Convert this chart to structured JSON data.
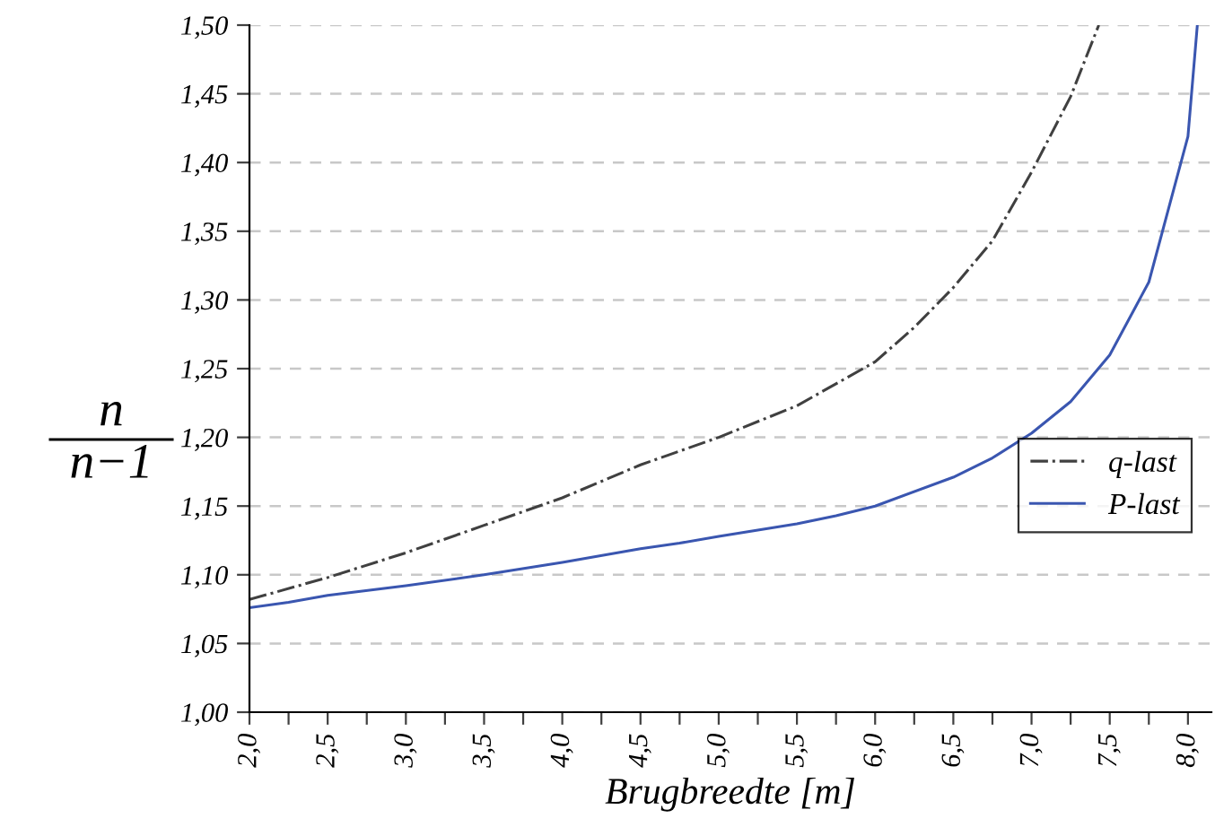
{
  "chart_data": {
    "type": "line",
    "xlabel": "Brugbreedte [m]",
    "annotations": [
      "n",
      "n−1"
    ],
    "xlim": [
      2.0,
      8.15
    ],
    "ylim": [
      1.0,
      1.5
    ],
    "xticks": [
      {
        "value": 2.0,
        "label": "2,0"
      },
      {
        "value": 2.25,
        "label": null
      },
      {
        "value": 2.5,
        "label": "2,5"
      },
      {
        "value": 2.75,
        "label": null
      },
      {
        "value": 3.0,
        "label": "3,0"
      },
      {
        "value": 3.25,
        "label": null
      },
      {
        "value": 3.5,
        "label": "3,5"
      },
      {
        "value": 3.75,
        "label": null
      },
      {
        "value": 4.0,
        "label": "4,0"
      },
      {
        "value": 4.25,
        "label": null
      },
      {
        "value": 4.5,
        "label": "4,5"
      },
      {
        "value": 4.75,
        "label": null
      },
      {
        "value": 5.0,
        "label": "5,0"
      },
      {
        "value": 5.25,
        "label": null
      },
      {
        "value": 5.5,
        "label": "5,5"
      },
      {
        "value": 5.75,
        "label": null
      },
      {
        "value": 6.0,
        "label": "6,0"
      },
      {
        "value": 6.25,
        "label": null
      },
      {
        "value": 6.5,
        "label": "6,5"
      },
      {
        "value": 6.75,
        "label": null
      },
      {
        "value": 7.0,
        "label": "7,0"
      },
      {
        "value": 7.25,
        "label": null
      },
      {
        "value": 7.5,
        "label": "7,5"
      },
      {
        "value": 7.75,
        "label": null
      },
      {
        "value": 8.0,
        "label": "8,0"
      }
    ],
    "yticks": [
      {
        "value": 1.0,
        "label": "1,00"
      },
      {
        "value": 1.05,
        "label": "1,05"
      },
      {
        "value": 1.1,
        "label": "1,10"
      },
      {
        "value": 1.15,
        "label": "1,15"
      },
      {
        "value": 1.2,
        "label": "1,20"
      },
      {
        "value": 1.25,
        "label": "1,25"
      },
      {
        "value": 1.3,
        "label": "1,30"
      },
      {
        "value": 1.35,
        "label": "1,35"
      },
      {
        "value": 1.4,
        "label": "1,40"
      },
      {
        "value": 1.45,
        "label": "1,45"
      },
      {
        "value": 1.5,
        "label": "1,50"
      }
    ],
    "grid": "y",
    "legend": "right",
    "marker": "none",
    "series": [
      {
        "name": "q-last",
        "color": "#404040",
        "line_style": "dashdot",
        "x": [
          2.0,
          2.5,
          3.0,
          3.5,
          4.0,
          4.5,
          5.0,
          5.5,
          5.75,
          6.0,
          6.25,
          6.5,
          6.75,
          7.0,
          7.25,
          7.43
        ],
        "values": [
          1.082,
          1.098,
          1.116,
          1.136,
          1.156,
          1.18,
          1.2,
          1.223,
          1.239,
          1.255,
          1.28,
          1.309,
          1.343,
          1.393,
          1.448,
          1.5
        ]
      },
      {
        "name": "P-last",
        "color": "#3a56b0",
        "line_style": "solid",
        "x": [
          2.0,
          2.25,
          2.5,
          3.0,
          3.5,
          4.0,
          4.5,
          4.75,
          5.0,
          5.5,
          5.75,
          6.0,
          6.5,
          6.75,
          7.0,
          7.25,
          7.5,
          7.75,
          8.0,
          8.06
        ],
        "values": [
          1.076,
          1.08,
          1.085,
          1.092,
          1.1,
          1.109,
          1.119,
          1.123,
          1.128,
          1.137,
          1.143,
          1.15,
          1.171,
          1.185,
          1.203,
          1.226,
          1.26,
          1.313,
          1.419,
          1.5
        ]
      }
    ]
  }
}
